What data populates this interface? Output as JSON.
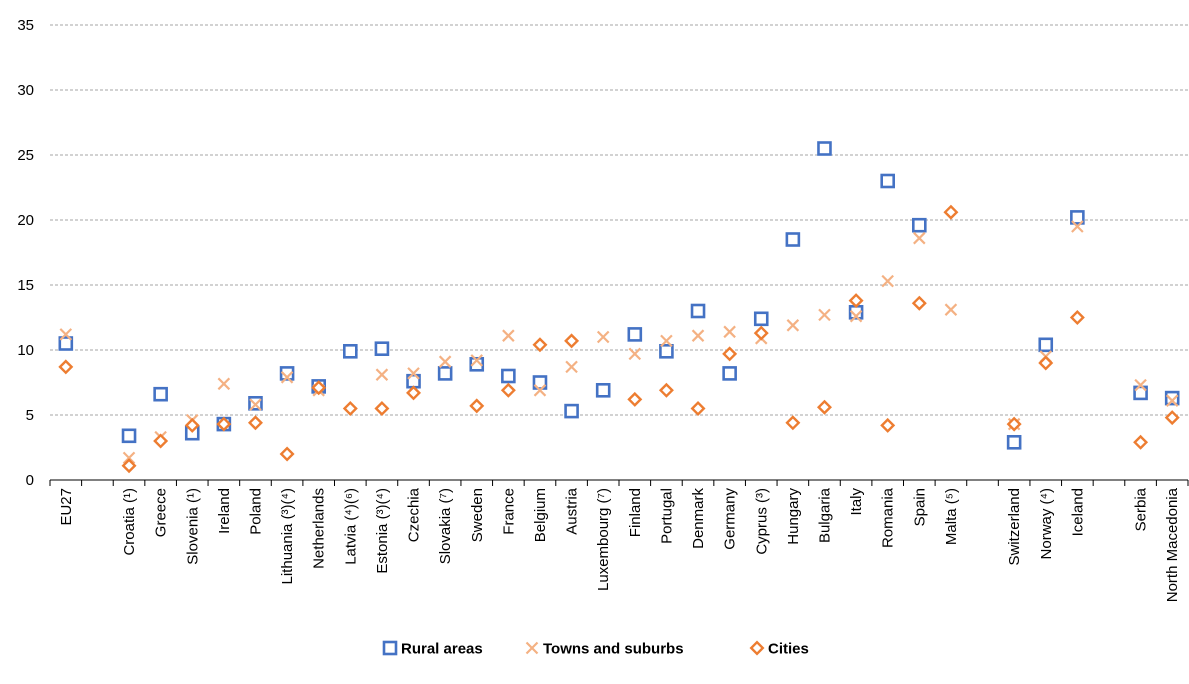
{
  "chart_data": {
    "type": "scatter",
    "ylim": [
      0,
      35
    ],
    "yticks": [
      0,
      5,
      10,
      15,
      20,
      25,
      30,
      35
    ],
    "grid": "horizontal dashed",
    "legend_position": "bottom",
    "categories": [
      "EU27",
      "",
      "Croatia (¹)",
      "Greece",
      "Slovenia (¹)",
      "Ireland",
      "Poland",
      "Lithuania (³)(⁴)",
      "Netherlands",
      "Latvia (⁴)(⁶)",
      "Estonia (³)(⁴)",
      "Czechia",
      "Slovakia (⁷)",
      "Sweden",
      "France",
      "Belgium",
      "Austria",
      "Luxembourg (⁷)",
      "Finland",
      "Portugal",
      "Denmark",
      "Germany",
      "Cyprus (³)",
      "Hungary",
      "Bulgaria",
      "Italy",
      "Romania",
      "Spain",
      "Malta (⁵)",
      "",
      "Switzerland",
      "Norway (⁴)",
      "Iceland",
      "",
      "Serbia",
      "North Macedonia"
    ],
    "series": [
      {
        "name": "Rural areas",
        "color": "#4472C4",
        "marker": "square",
        "values": [
          10.5,
          null,
          3.4,
          6.6,
          3.6,
          4.3,
          5.9,
          8.2,
          7.2,
          9.9,
          10.1,
          7.6,
          8.2,
          8.9,
          8.0,
          7.5,
          5.3,
          6.9,
          11.2,
          9.9,
          13.0,
          8.2,
          12.4,
          18.5,
          25.5,
          12.9,
          23.0,
          19.6,
          null,
          null,
          2.9,
          10.4,
          20.2,
          null,
          6.7,
          6.3
        ]
      },
      {
        "name": "Towns and suburbs",
        "color": "#F4B183",
        "marker": "x",
        "values": [
          11.2,
          null,
          1.7,
          3.3,
          4.6,
          7.4,
          5.8,
          7.9,
          6.9,
          null,
          8.1,
          8.2,
          9.1,
          9.2,
          11.1,
          6.9,
          8.7,
          11.0,
          9.7,
          10.7,
          11.1,
          11.4,
          10.9,
          11.9,
          12.7,
          12.6,
          15.3,
          18.6,
          13.1,
          null,
          4.3,
          9.5,
          19.5,
          null,
          7.3,
          6.1
        ]
      },
      {
        "name": "Cities",
        "color": "#ED7D31",
        "marker": "diamond",
        "values": [
          8.7,
          null,
          1.1,
          3.0,
          4.2,
          4.3,
          4.4,
          2.0,
          7.1,
          5.5,
          5.5,
          6.7,
          null,
          5.7,
          6.9,
          10.4,
          10.7,
          null,
          6.2,
          6.9,
          5.5,
          9.7,
          11.3,
          4.4,
          5.6,
          13.8,
          4.2,
          13.6,
          20.6,
          null,
          4.3,
          9.0,
          12.5,
          null,
          2.9,
          4.8
        ]
      }
    ]
  }
}
